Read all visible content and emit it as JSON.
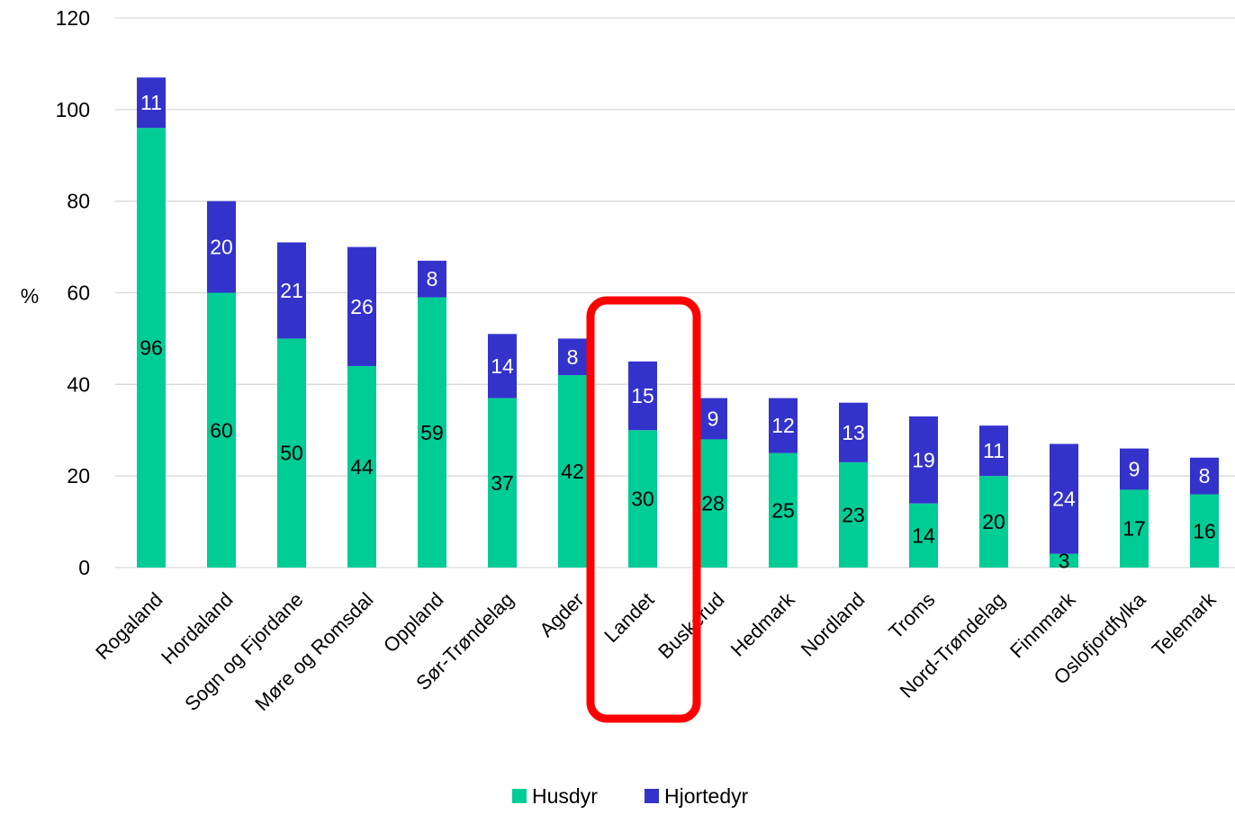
{
  "chart_data": {
    "type": "bar",
    "stacked": true,
    "title": "",
    "xlabel": "",
    "ylabel": "%",
    "ylim": [
      0,
      120
    ],
    "yticks": [
      0,
      20,
      40,
      60,
      80,
      100,
      120
    ],
    "grid": true,
    "legend_position": "bottom-center",
    "categories": [
      "Rogaland",
      "Hordaland",
      "Sogn og Fjordane",
      "Møre og Romsdal",
      "Oppland",
      "Sør-Trøndelag",
      "Agder",
      "Landet",
      "Buskerud",
      "Hedmark",
      "Nordland",
      "Troms",
      "Nord-Trøndelag",
      "Finnmark",
      "Oslofjordfylka",
      "Telemark"
    ],
    "series": [
      {
        "name": "Husdyr",
        "color": "#00CC96",
        "values": [
          96,
          60,
          50,
          44,
          59,
          37,
          42,
          30,
          28,
          25,
          23,
          14,
          20,
          3,
          17,
          16
        ]
      },
      {
        "name": "Hjortedyr",
        "color": "#3333CC",
        "values": [
          11,
          20,
          21,
          26,
          8,
          14,
          8,
          15,
          9,
          12,
          13,
          19,
          11,
          24,
          9,
          8
        ]
      }
    ],
    "highlight": {
      "category": "Landet",
      "color": "#FF0000"
    }
  }
}
